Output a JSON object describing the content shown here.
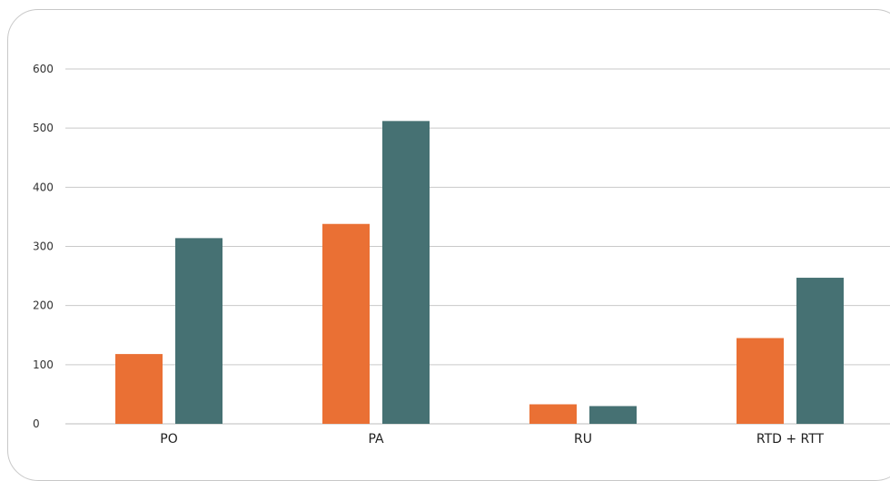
{
  "chart_data": {
    "type": "bar",
    "categories": [
      "PO",
      "PA",
      "RU",
      "RTD + RTT"
    ],
    "series": [
      {
        "values": [
          118,
          338,
          33,
          145
        ],
        "color": "#ea7034"
      },
      {
        "values": [
          314,
          512,
          30,
          247
        ],
        "color": "#467173"
      }
    ],
    "yticks": [
      "0",
      "100",
      "200",
      "300",
      "400",
      "500",
      "600"
    ],
    "ylim": [
      0,
      600
    ],
    "title": "",
    "xlabel": "",
    "ylabel": "",
    "grid": true,
    "legend": "none"
  }
}
